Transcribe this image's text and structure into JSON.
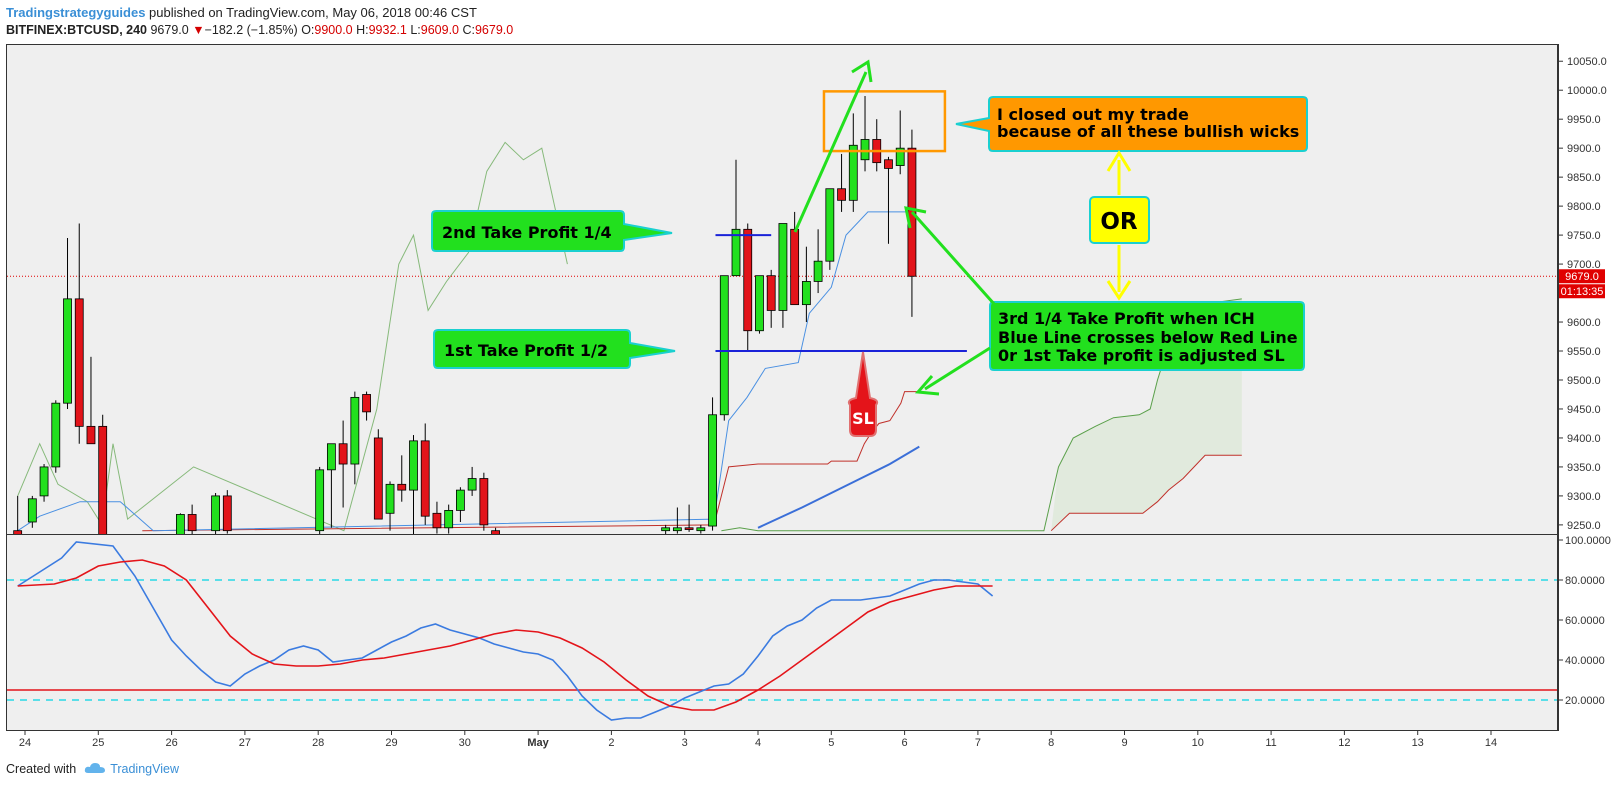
{
  "header": {
    "author": "Tradingstrategyguides",
    "published": "published on TradingView.com, May 06, 2018 00:46 CST",
    "symbol": "BITFINEX:BTCUSD, 240",
    "last": "9679.0",
    "change": "−182.2 (−1.85%)",
    "open_label": "O:",
    "open": "9900.0",
    "high_label": "H:",
    "high": "9932.1",
    "low_label": "L:",
    "low": "9609.0",
    "close_label": "C:",
    "close": "9679.0"
  },
  "footer": {
    "created_with": "Created with",
    "brand": "TradingView"
  },
  "colors": {
    "bull": "#22e01e",
    "bear": "#e2141a",
    "tenkan": "#4a90e2",
    "kijun": "#c0302a",
    "span_a": "#5aa04a",
    "span_b": "#c0302a",
    "cloud": "#dfe9da",
    "price_line": "#e00000",
    "k_line": "#3b7be0",
    "d_line": "#e4141a",
    "level_line": "#28d8e6",
    "oversold_line": "#e4141a"
  },
  "chart_data": [
    {
      "type": "candlestick",
      "y_ticks": [
        "10050.0",
        "10000.0",
        "9950.0",
        "9900.0",
        "9850.0",
        "9800.0",
        "9750.0",
        "9700.0",
        "9650.0",
        "9600.0",
        "9550.0",
        "9500.0",
        "9450.0",
        "9400.0",
        "9350.0",
        "9300.0",
        "9250.0"
      ],
      "ylim": [
        9236,
        10078
      ],
      "x_ticks": [
        "24",
        "25",
        "26",
        "27",
        "28",
        "29",
        "30",
        "May",
        "2",
        "3",
        "4",
        "5",
        "6",
        "7",
        "8",
        "9",
        "10",
        "11",
        "12",
        "13",
        "14"
      ],
      "current_price_label": "9679.0",
      "countdown_label": "01:13:35",
      "candles": [
        [
          -0.1,
          9240,
          9300,
          9220,
          9230
        ],
        [
          0.1,
          9255,
          9300,
          9245,
          9295
        ],
        [
          0.26,
          9300,
          9355,
          9290,
          9350
        ],
        [
          0.42,
          9350,
          9465,
          9340,
          9460
        ],
        [
          0.58,
          9460,
          9745,
          9450,
          9640
        ],
        [
          0.74,
          9640,
          9770,
          9390,
          9420
        ],
        [
          0.9,
          9420,
          9540,
          9390,
          9390
        ],
        [
          1.06,
          9420,
          9440,
          9200,
          9220
        ],
        [
          2.12,
          9230,
          9270,
          9230,
          9268
        ],
        [
          2.28,
          9268,
          9285,
          9230,
          9240
        ],
        [
          2.6,
          9240,
          9305,
          9220,
          9300
        ],
        [
          2.76,
          9300,
          9310,
          9235,
          9240
        ],
        [
          4.02,
          9240,
          9350,
          9230,
          9345
        ],
        [
          4.18,
          9345,
          9390,
          9245,
          9390
        ],
        [
          4.34,
          9390,
          9430,
          9280,
          9355
        ],
        [
          4.5,
          9355,
          9480,
          9320,
          9470
        ],
        [
          4.66,
          9475,
          9480,
          9430,
          9445
        ],
        [
          4.82,
          9400,
          9415,
          9260,
          9260
        ],
        [
          4.98,
          9270,
          9325,
          9240,
          9320
        ],
        [
          5.14,
          9320,
          9370,
          9290,
          9310
        ],
        [
          5.3,
          9310,
          9405,
          9230,
          9395
        ],
        [
          5.46,
          9395,
          9425,
          9250,
          9265
        ],
        [
          5.62,
          9270,
          9290,
          9235,
          9245
        ],
        [
          5.78,
          9245,
          9285,
          9235,
          9275
        ],
        [
          5.94,
          9275,
          9315,
          9255,
          9310
        ],
        [
          6.1,
          9310,
          9350,
          9300,
          9330
        ],
        [
          6.26,
          9330,
          9340,
          9240,
          9250
        ],
        [
          6.42,
          9240,
          9245,
          9225,
          9230
        ],
        [
          8.74,
          9240,
          9250,
          9230,
          9245
        ],
        [
          8.9,
          9240,
          9280,
          9235,
          9245
        ],
        [
          9.06,
          9245,
          9285,
          9238,
          9242
        ],
        [
          9.22,
          9240,
          9250,
          9235,
          9245
        ],
        [
          9.38,
          9248,
          9470,
          9240,
          9440
        ],
        [
          9.54,
          9440,
          9680,
          9430,
          9680
        ],
        [
          9.7,
          9680,
          9880,
          9680,
          9760
        ],
        [
          9.86,
          9760,
          9770,
          9550,
          9585
        ],
        [
          10.02,
          9585,
          9680,
          9580,
          9680
        ],
        [
          10.18,
          9680,
          9690,
          9590,
          9620
        ],
        [
          10.34,
          9620,
          9770,
          9590,
          9770
        ],
        [
          10.5,
          9760,
          9790,
          9630,
          9630
        ],
        [
          10.66,
          9630,
          9730,
          9600,
          9670
        ],
        [
          10.82,
          9670,
          9760,
          9650,
          9705
        ],
        [
          10.98,
          9705,
          9830,
          9690,
          9830
        ],
        [
          11.14,
          9830,
          9890,
          9790,
          9810
        ],
        [
          11.3,
          9810,
          9960,
          9790,
          9905
        ],
        [
          11.46,
          9880,
          9990,
          9860,
          9915
        ],
        [
          11.62,
          9915,
          9950,
          9860,
          9875
        ],
        [
          11.78,
          9880,
          9885,
          9735,
          9865
        ],
        [
          11.94,
          9870,
          9965,
          9855,
          9900
        ],
        [
          12.1,
          9900,
          9932,
          9609,
          9679
        ]
      ],
      "tenkan_sen": [
        [
          -0.1,
          9240
        ],
        [
          0.2,
          9265
        ],
        [
          0.75,
          9290
        ],
        [
          1.3,
          9290
        ],
        [
          1.75,
          9240
        ],
        [
          9.4,
          9260
        ],
        [
          9.6,
          9430
        ],
        [
          9.85,
          9470
        ],
        [
          10.1,
          9520
        ],
        [
          10.55,
          9530
        ],
        [
          10.7,
          9615
        ],
        [
          11.0,
          9660
        ],
        [
          11.2,
          9750
        ],
        [
          11.5,
          9790
        ],
        [
          12.1,
          9790
        ]
      ],
      "kijun_sen": [
        [
          1.6,
          9240
        ],
        [
          9.4,
          9250
        ],
        [
          9.6,
          9350
        ],
        [
          10.0,
          9355
        ],
        [
          10.95,
          9355
        ],
        [
          11.0,
          9360
        ],
        [
          11.35,
          9360
        ],
        [
          11.45,
          9390
        ],
        [
          11.55,
          9410
        ],
        [
          11.65,
          9425
        ],
        [
          11.8,
          9430
        ],
        [
          11.95,
          9460
        ],
        [
          12.0,
          9480
        ],
        [
          12.2,
          9480
        ]
      ],
      "lagging_span": [
        [
          -0.1,
          9300
        ],
        [
          0.2,
          9390
        ],
        [
          0.45,
          9320
        ],
        [
          0.85,
          9290
        ],
        [
          1.05,
          9250
        ],
        [
          1.2,
          9390
        ],
        [
          1.4,
          9260
        ],
        [
          2.3,
          9350
        ],
        [
          4.35,
          9240
        ],
        [
          4.8,
          9450
        ],
        [
          5.1,
          9700
        ],
        [
          5.3,
          9750
        ],
        [
          5.5,
          9620
        ],
        [
          5.75,
          9670
        ],
        [
          6.05,
          9720
        ],
        [
          6.3,
          9860
        ],
        [
          6.55,
          9910
        ],
        [
          6.8,
          9880
        ],
        [
          7.05,
          9900
        ],
        [
          7.4,
          9700
        ]
      ],
      "senkou_span_a": [
        [
          9.5,
          9240
        ],
        [
          9.75,
          9245
        ],
        [
          10.0,
          9240
        ],
        [
          13.9,
          9240
        ],
        [
          14.1,
          9350
        ],
        [
          14.3,
          9400
        ],
        [
          14.6,
          9420
        ],
        [
          14.85,
          9435
        ],
        [
          15.2,
          9440
        ],
        [
          15.35,
          9450
        ],
        [
          15.45,
          9500
        ],
        [
          15.55,
          9540
        ],
        [
          15.75,
          9570
        ],
        [
          16.0,
          9610
        ],
        [
          16.3,
          9635
        ],
        [
          16.6,
          9640
        ]
      ],
      "senkou_span_b": [
        [
          14.0,
          9240
        ],
        [
          14.25,
          9270
        ],
        [
          15.25,
          9270
        ],
        [
          15.45,
          9290
        ],
        [
          15.6,
          9310
        ],
        [
          15.8,
          9330
        ],
        [
          15.95,
          9350
        ],
        [
          16.1,
          9370
        ],
        [
          16.6,
          9370
        ]
      ],
      "take_profit_lines": [
        {
          "x1": 9.42,
          "x2": 10.18,
          "y": 9750
        },
        {
          "x1": 9.42,
          "x2": 12.85,
          "y": 9550
        }
      ],
      "trade_box": {
        "x1": 10.9,
        "x2": 12.55,
        "y1": 9895,
        "y2": 9998
      },
      "annotations": [
        {
          "text": "2nd Take Profit 1/4"
        },
        {
          "text": "1st Take Profit 1/2"
        },
        {
          "text": "SL"
        },
        {
          "lines": [
            "I closed out my trade",
            "because of all these bullish wicks"
          ]
        },
        {
          "text": "OR"
        },
        {
          "lines": [
            "3rd 1/4 Take Profit when ICH",
            "Blue Line crosses below Red Line",
            "0r 1st Take profit is adjusted SL"
          ]
        }
      ]
    },
    {
      "type": "line",
      "y_ticks": [
        "100.0000",
        "80.0000",
        "60.0000",
        "40.0000",
        "20.0000"
      ],
      "ylim": [
        5,
        102
      ],
      "upper_level": 80,
      "oversold_line": 25,
      "lower_level": 20,
      "series": [
        {
          "role": "k",
          "points": [
            [
              -0.1,
              77
            ],
            [
              0.2,
              84
            ],
            [
              0.5,
              91
            ],
            [
              0.7,
              99
            ],
            [
              1.2,
              97
            ],
            [
              1.5,
              82
            ],
            [
              2.0,
              50
            ],
            [
              2.2,
              42
            ],
            [
              2.4,
              35
            ],
            [
              2.6,
              29
            ],
            [
              2.8,
              27
            ],
            [
              3.0,
              33
            ],
            [
              3.2,
              37
            ],
            [
              3.4,
              40
            ],
            [
              3.6,
              45
            ],
            [
              3.8,
              47
            ],
            [
              4.0,
              45
            ],
            [
              4.2,
              39
            ],
            [
              4.4,
              40
            ],
            [
              4.6,
              41
            ],
            [
              4.8,
              45
            ],
            [
              5.0,
              49
            ],
            [
              5.2,
              52
            ],
            [
              5.4,
              56
            ],
            [
              5.6,
              58
            ],
            [
              5.8,
              55
            ],
            [
              6.0,
              53
            ],
            [
              6.2,
              51
            ],
            [
              6.4,
              48
            ],
            [
              6.6,
              46
            ],
            [
              6.8,
              44
            ],
            [
              7.0,
              43
            ],
            [
              7.2,
              40
            ],
            [
              7.4,
              32
            ],
            [
              7.6,
              22
            ],
            [
              7.8,
              15
            ],
            [
              8.0,
              10
            ],
            [
              8.2,
              11
            ],
            [
              8.4,
              11
            ],
            [
              8.6,
              14
            ],
            [
              8.8,
              17
            ],
            [
              9.0,
              21
            ],
            [
              9.2,
              24
            ],
            [
              9.4,
              27
            ],
            [
              9.6,
              28
            ],
            [
              9.8,
              33
            ],
            [
              10.0,
              42
            ],
            [
              10.2,
              52
            ],
            [
              10.4,
              57
            ],
            [
              10.6,
              60
            ],
            [
              10.8,
              66
            ],
            [
              11.0,
              70
            ],
            [
              11.2,
              70
            ],
            [
              11.4,
              70
            ],
            [
              11.6,
              71
            ],
            [
              11.8,
              72
            ],
            [
              12.0,
              75
            ],
            [
              12.2,
              78
            ],
            [
              12.4,
              80
            ],
            [
              12.6,
              80
            ],
            [
              12.8,
              79
            ],
            [
              13.0,
              78
            ],
            [
              13.2,
              72
            ]
          ]
        },
        {
          "role": "d",
          "points": [
            [
              -0.1,
              77
            ],
            [
              0.4,
              78
            ],
            [
              0.7,
              81
            ],
            [
              1.0,
              87
            ],
            [
              1.3,
              89
            ],
            [
              1.6,
              90
            ],
            [
              1.9,
              87
            ],
            [
              2.2,
              80
            ],
            [
              2.5,
              66
            ],
            [
              2.8,
              52
            ],
            [
              3.1,
              43
            ],
            [
              3.4,
              38
            ],
            [
              3.7,
              37
            ],
            [
              4.0,
              37
            ],
            [
              4.3,
              38
            ],
            [
              4.6,
              40
            ],
            [
              4.9,
              41
            ],
            [
              5.2,
              43
            ],
            [
              5.5,
              45
            ],
            [
              5.8,
              47
            ],
            [
              6.1,
              50
            ],
            [
              6.4,
              53
            ],
            [
              6.7,
              55
            ],
            [
              7.0,
              54
            ],
            [
              7.3,
              51
            ],
            [
              7.6,
              46
            ],
            [
              7.9,
              39
            ],
            [
              8.2,
              30
            ],
            [
              8.5,
              22
            ],
            [
              8.8,
              17
            ],
            [
              9.1,
              15
            ],
            [
              9.4,
              15
            ],
            [
              9.7,
              19
            ],
            [
              10.0,
              25
            ],
            [
              10.3,
              32
            ],
            [
              10.6,
              40
            ],
            [
              10.9,
              48
            ],
            [
              11.2,
              56
            ],
            [
              11.5,
              64
            ],
            [
              11.8,
              69
            ],
            [
              12.1,
              72
            ],
            [
              12.4,
              75
            ],
            [
              12.7,
              77
            ],
            [
              13.0,
              77
            ],
            [
              13.2,
              77
            ]
          ]
        }
      ]
    }
  ]
}
